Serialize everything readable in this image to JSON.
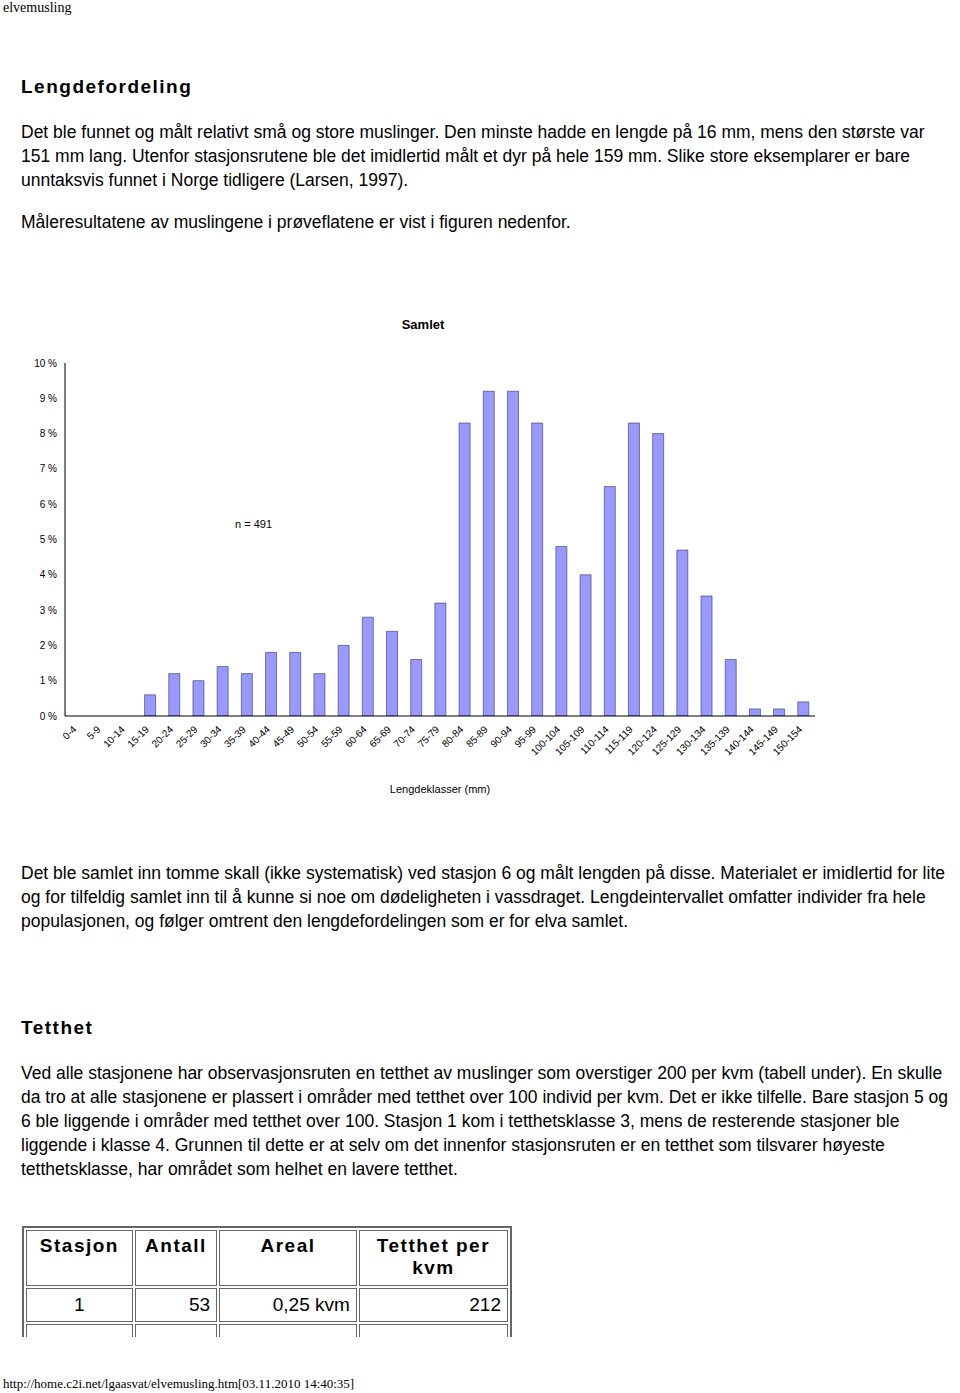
{
  "page_header": "elvemusling",
  "heading1": "Lengdefordeling",
  "para1": "Det ble funnet og målt relativt små og store muslinger. Den minste hadde en lengde på 16 mm, mens den største var 151 mm lang. Utenfor stasjonsrutene ble det imidlertid målt et dyr på hele 159 mm. Slike store eksemplarer er bare unntaksvis funnet i Norge tidligere (Larsen, 1997).",
  "para2": "Måleresultatene av muslingene i prøveflatene er vist i figuren nedenfor.",
  "chart_data": {
    "type": "bar",
    "title": "Samlet",
    "annotation": "n = 491",
    "x_label": "Lengdeklasser (mm)",
    "categories": [
      "0-4",
      "5-9",
      "10-14",
      "15-19",
      "20-24",
      "25-29",
      "30-34",
      "35-39",
      "40-44",
      "45-49",
      "50-54",
      "55-59",
      "60-64",
      "65-69",
      "70-74",
      "75-79",
      "80-84",
      "85-89",
      "90-94",
      "95-99",
      "100-104",
      "105-109",
      "110-114",
      "115-119",
      "120-124",
      "125-129",
      "130-134",
      "135-139",
      "140-144",
      "145-149",
      "150-154"
    ],
    "values": [
      0,
      0,
      0,
      0.6,
      1.2,
      1.0,
      1.4,
      1.2,
      1.8,
      1.8,
      1.2,
      2.0,
      2.8,
      2.4,
      1.6,
      3.2,
      8.3,
      9.2,
      9.2,
      8.3,
      4.8,
      4.0,
      6.5,
      8.3,
      8.0,
      4.7,
      3.4,
      1.6,
      0.2,
      0.2,
      0.4
    ],
    "color": "#9999ff",
    "ylim": [
      0,
      10
    ],
    "yticks": [
      {
        "value": 0,
        "label": "0 %"
      },
      {
        "value": 1,
        "label": "1 %"
      },
      {
        "value": 2,
        "label": "2 %"
      },
      {
        "value": 3,
        "label": "3 %"
      },
      {
        "value": 4,
        "label": "4 %"
      },
      {
        "value": 5,
        "label": "5 %"
      },
      {
        "value": 6,
        "label": "6 %"
      },
      {
        "value": 7,
        "label": "7 %"
      },
      {
        "value": 8,
        "label": "8 %"
      },
      {
        "value": 9,
        "label": "9 %"
      },
      {
        "value": 10,
        "label": "10 %"
      }
    ],
    "grid": false
  },
  "para3": "Det ble samlet inn tomme skall (ikke systematisk) ved stasjon 6 og målt lengden på disse. Materialet er imidlertid for lite og for tilfeldig samlet inn til å kunne si noe om dødeligheten i vassdraget. Lengdeintervallet omfatter individer fra hele populasjonen, og følger omtrent den lengdefordelingen som er for elva samlet.",
  "heading2": "Tetthet",
  "para4": "Ved alle stasjonene har observasjonsruten en tetthet av muslinger som overstiger 200 per kvm (tabell under). En skulle da tro at alle stasjonene er plassert i områder med tetthet over 100 individ per kvm. Det er ikke tilfelle. Bare stasjon 5 og 6 ble liggende i områder med tetthet over 100. Stasjon 1 kom i tetthetsklasse 3, mens de resterende stasjoner ble liggende i klasse 4. Grunnen til dette er at selv om det innenfor stasjonsruten er en tetthet som tilsvarer høyeste tetthetsklasse, har området som helhet en lavere tetthet.",
  "table": {
    "header": [
      "Stasjon",
      "Antall",
      "Areal",
      "Tetthet per kvm"
    ],
    "rows": [
      [
        "1",
        "53",
        "0,25 kvm",
        "212"
      ]
    ]
  },
  "footer": "http://home.c2i.net/lgaasvat/elvemusling.htm[03.11.2010 14:40:35]"
}
